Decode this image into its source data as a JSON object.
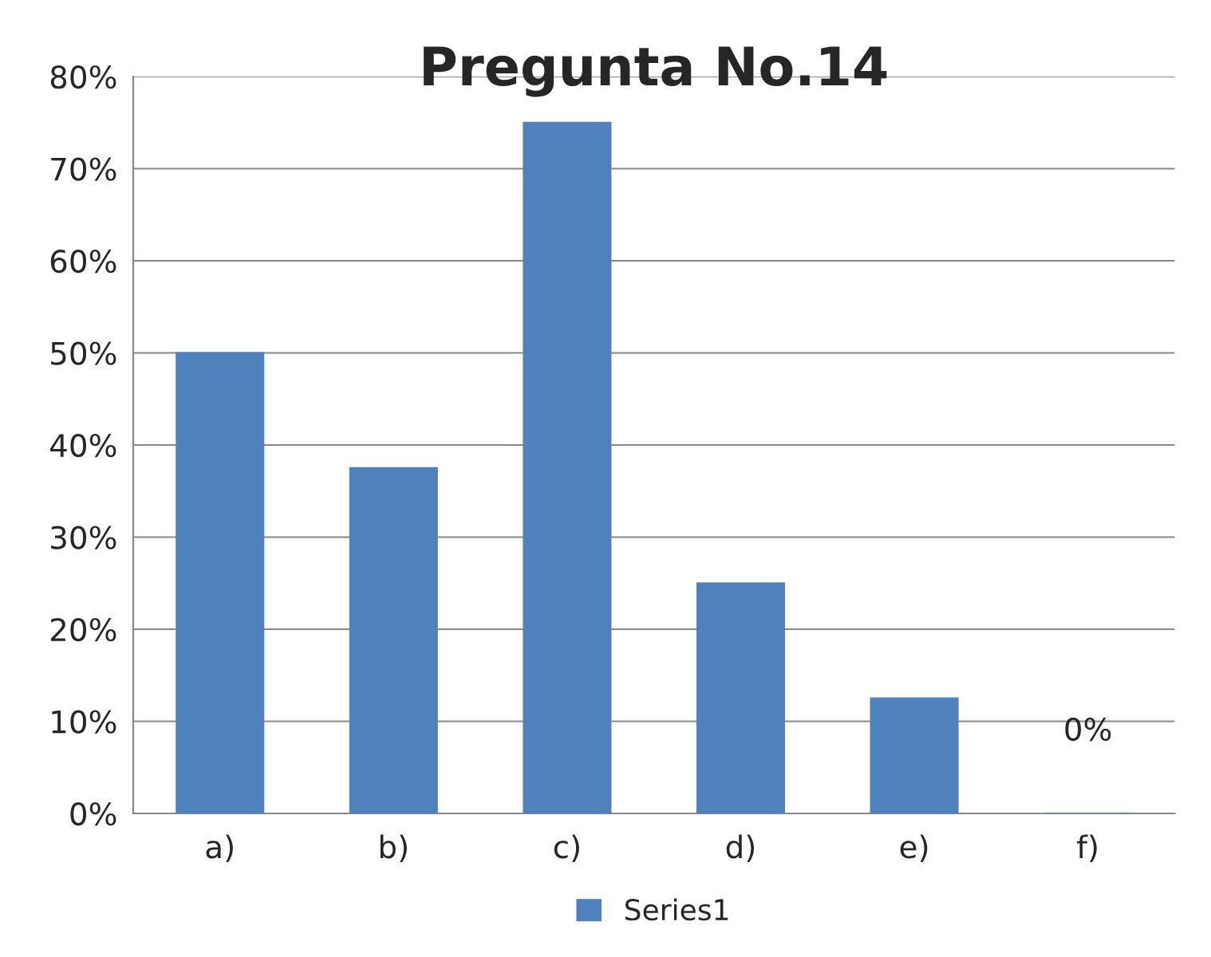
{
  "chart_data": {
    "type": "bar",
    "title": "Pregunta No.14",
    "categories": [
      "a)",
      "b)",
      "c)",
      "d)",
      "e)",
      "f)"
    ],
    "series": [
      {
        "name": "Series1",
        "color": "#4f81bd",
        "values": [
          50,
          37.5,
          75,
          25,
          12.5,
          0
        ],
        "value_labels": [
          null,
          null,
          null,
          null,
          null,
          "0%"
        ]
      }
    ],
    "ylim": [
      0,
      80
    ],
    "yticks": [
      {
        "value": 0,
        "label": "0%"
      },
      {
        "value": 10,
        "label": "10%"
      },
      {
        "value": 20,
        "label": "20%"
      },
      {
        "value": 30,
        "label": "30%"
      },
      {
        "value": 40,
        "label": "40%"
      },
      {
        "value": 50,
        "label": "50%"
      },
      {
        "value": 60,
        "label": "60%"
      },
      {
        "value": 70,
        "label": "70%"
      },
      {
        "value": 80,
        "label": "80%"
      }
    ],
    "grid": "y",
    "legend": "bottom"
  }
}
